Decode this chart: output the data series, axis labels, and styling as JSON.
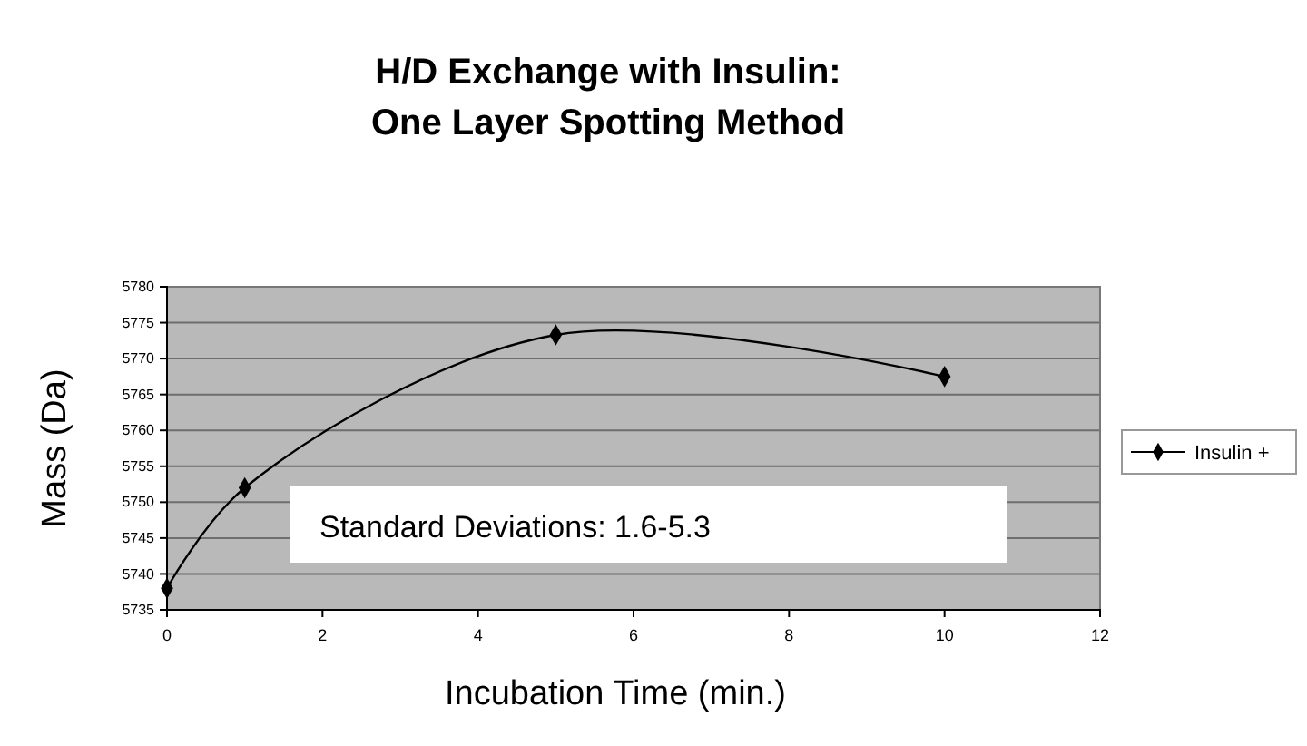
{
  "chart_data": {
    "type": "line",
    "title": "H/D Exchange with Insulin:\nOne Layer Spotting Method",
    "xlabel": "Incubation Time (min.)",
    "ylabel": "Mass (Da)",
    "x": [
      0,
      1,
      5,
      10
    ],
    "series": [
      {
        "name": "Insulin +",
        "color": "#000000",
        "values": [
          5738,
          5752,
          5773.3,
          5767.5
        ]
      }
    ],
    "xlim": [
      0,
      12
    ],
    "xticks": [
      0,
      2,
      4,
      6,
      8,
      10,
      12
    ],
    "ylim": [
      5735,
      5780
    ],
    "yticks": [
      5735,
      5740,
      5745,
      5750,
      5755,
      5760,
      5765,
      5770,
      5775,
      5780
    ],
    "grid": "y",
    "legend": "right",
    "marker": "diamond",
    "line_style": "solid",
    "annotations": [
      "Standard Deviations: 1.6-5.3"
    ]
  }
}
